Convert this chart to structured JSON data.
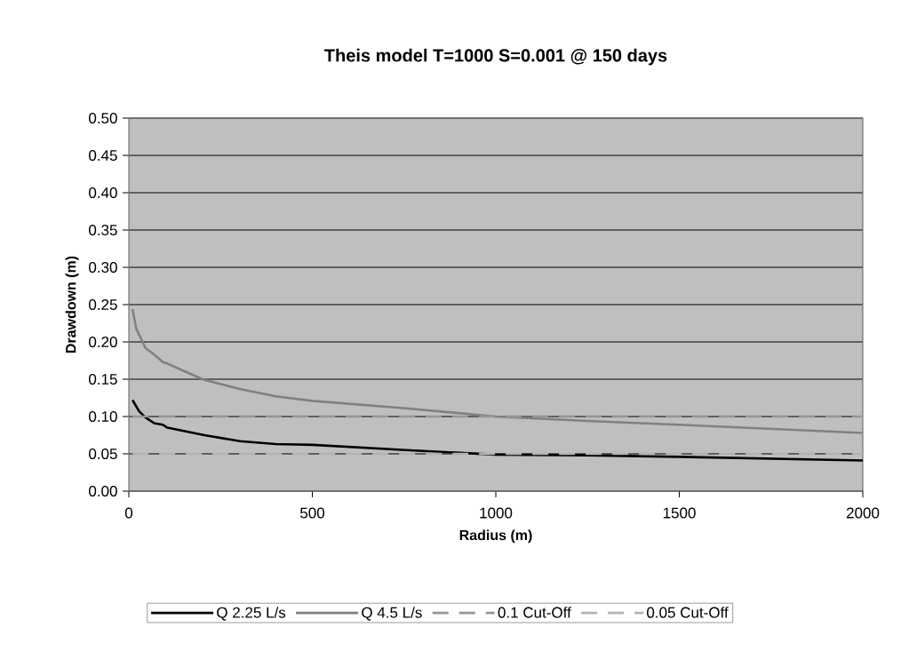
{
  "chart_data": {
    "type": "line",
    "title": "Theis model T=1000 S=0.001 @ 150 days",
    "xlabel": "Radius (m)",
    "ylabel": "Drawdown (m)",
    "xlim": [
      0,
      2000
    ],
    "xticks": [
      0,
      500,
      1000,
      1500,
      2000
    ],
    "ylim": [
      0,
      0.5
    ],
    "yticks": [
      {
        "value": 0,
        "label": "0.00"
      },
      {
        "value": 0.05,
        "label": "0.05"
      },
      {
        "value": 0.1,
        "label": "0.10"
      },
      {
        "value": 0.15,
        "label": "0.15"
      },
      {
        "value": 0.2,
        "label": "0.20"
      },
      {
        "value": 0.25,
        "label": "0.25"
      },
      {
        "value": 0.3,
        "label": "0.30"
      },
      {
        "value": 0.35,
        "label": "0.35"
      },
      {
        "value": 0.4,
        "label": "0.40"
      },
      {
        "value": 0.45,
        "label": "0.45"
      },
      {
        "value": 0.5,
        "label": "0.50"
      }
    ],
    "grid": "y",
    "legend": "bottom",
    "marker": "none",
    "series": [
      {
        "name": "Q 2.25 L/s",
        "color": "#000000",
        "line_style": "solid",
        "x": [
          10,
          28,
          45,
          69,
          93,
          105,
          206,
          303,
          400,
          500,
          755,
          1000,
          1250,
          1500,
          2000
        ],
        "values": [
          0.122,
          0.107,
          0.099,
          0.091,
          0.089,
          0.085,
          0.075,
          0.067,
          0.063,
          0.062,
          0.055,
          0.049,
          0.048,
          0.046,
          0.041
        ]
      },
      {
        "name": "Q 4.5 L/s",
        "color": "#808080",
        "line_style": "solid",
        "x": [
          10,
          20,
          45,
          69,
          93,
          105,
          150,
          206,
          303,
          400,
          500,
          755,
          1000,
          1250,
          1500,
          2000
        ],
        "values": [
          0.244,
          0.218,
          0.192,
          0.183,
          0.173,
          0.171,
          0.161,
          0.149,
          0.137,
          0.127,
          0.121,
          0.111,
          0.1,
          0.094,
          0.089,
          0.078
        ]
      },
      {
        "name": "0.1 Cut-Off",
        "color": "#969696",
        "line_style": "dashed",
        "x": [
          10,
          2000
        ],
        "values": [
          0.1,
          0.1
        ]
      },
      {
        "name": "0.05 Cut-Off",
        "color": "#b2b2b2",
        "line_style": "dashed",
        "x": [
          10,
          2000
        ],
        "values": [
          0.05,
          0.05
        ]
      }
    ]
  }
}
